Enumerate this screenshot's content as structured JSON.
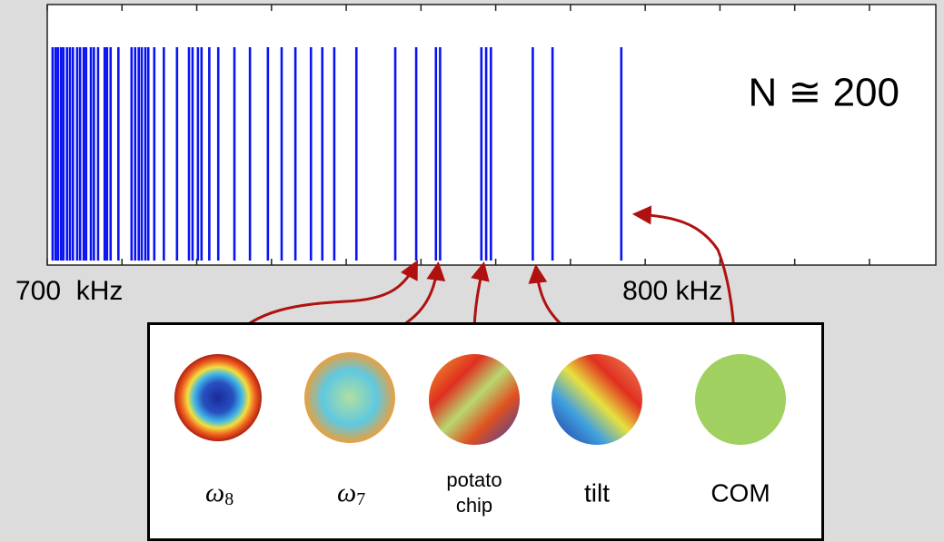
{
  "chart_data": {
    "type": "spectrum",
    "x": [
      700.9,
      701.4,
      701.8,
      702.3,
      702.7,
      703.3,
      703.8,
      704.3,
      705.0,
      705.5,
      706.1,
      706.5,
      707.3,
      707.8,
      708.5,
      709.6,
      710.0,
      710.6,
      711.9,
      714.1,
      714.7,
      715.3,
      715.8,
      716.4,
      716.9,
      717.9,
      719.5,
      721.7,
      723.7,
      724.3,
      725.2,
      725.8,
      727.1,
      728.6,
      731.3,
      733.9,
      736.9,
      739.2,
      741.5,
      744.1,
      746.0,
      748.0,
      751.7,
      758.2,
      761.7,
      765.0,
      765.7,
      772.6,
      773.4,
      774.2,
      781.2,
      784.5,
      796.0
    ],
    "color": "#0a14f0",
    "xlim": [
      700,
      848.6
    ],
    "xticks": [
      700,
      712.5,
      725,
      737.5,
      750,
      762.5,
      775,
      787.5,
      800,
      812.5,
      825,
      837.5
    ],
    "x_labels": [
      {
        "value": 700,
        "label": "700  kHz"
      },
      {
        "value": 800,
        "label": "800 kHz"
      }
    ],
    "annotation": "N ≅ 200"
  },
  "modes": [
    {
      "symbol": "ω",
      "subscript": "8"
    },
    {
      "symbol": "ω",
      "subscript": "7"
    },
    {
      "label": [
        "potato",
        "chip"
      ]
    },
    {
      "label": [
        "tilt"
      ]
    },
    {
      "label": [
        "COM"
      ]
    }
  ]
}
